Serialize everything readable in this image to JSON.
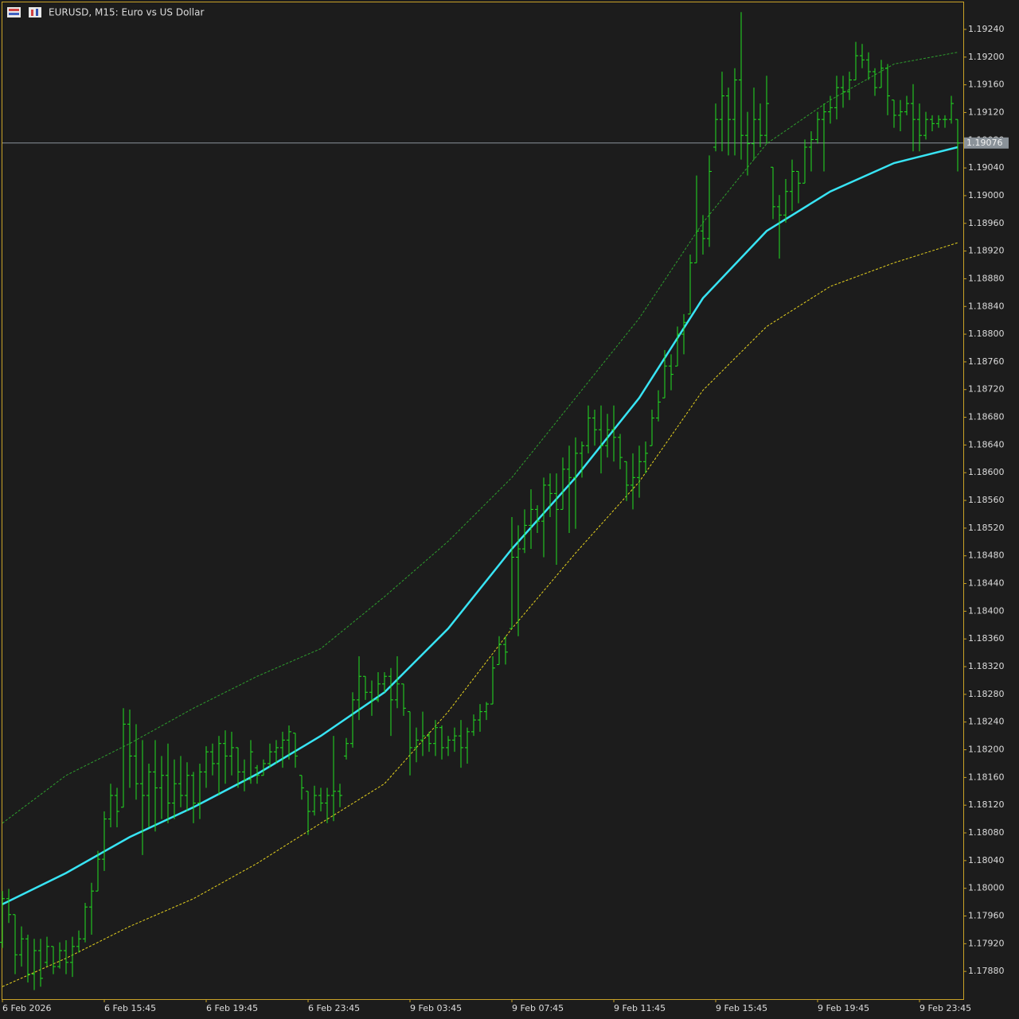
{
  "chart_data": {
    "type": "ohlc",
    "title": "EURUSD, M15:  Euro vs US Dollar",
    "categories": [
      "6 Feb 2026",
      null,
      null,
      null,
      null,
      null,
      null,
      null,
      null,
      null,
      null,
      null,
      null,
      null,
      null,
      null,
      "6 Feb 15:45",
      null,
      null,
      null,
      null,
      null,
      null,
      null,
      null,
      null,
      null,
      null,
      null,
      null,
      null,
      null,
      "6 Feb 19:45",
      null,
      null,
      null,
      null,
      null,
      null,
      null,
      null,
      null,
      null,
      null,
      null,
      null,
      null,
      null,
      "6 Feb 23:45",
      null,
      null,
      null,
      null,
      null,
      null,
      null,
      null,
      null,
      null,
      null,
      null,
      null,
      null,
      null,
      "9 Feb 03:45",
      null,
      null,
      null,
      null,
      null,
      null,
      null,
      null,
      null,
      null,
      null,
      null,
      null,
      null,
      null,
      "9 Feb 07:45",
      null,
      null,
      null,
      null,
      null,
      null,
      null,
      null,
      null,
      null,
      null,
      null,
      null,
      null,
      null,
      "9 Feb 11:45",
      null,
      null,
      null,
      null,
      null,
      null,
      null,
      null,
      null,
      null,
      null,
      null,
      null,
      null,
      null,
      "9 Feb 15:45",
      null,
      null,
      null,
      null,
      null,
      null,
      null,
      null,
      null,
      null,
      null,
      null,
      null,
      null,
      null,
      "9 Feb 19:45",
      null,
      null,
      null,
      null,
      null,
      null,
      null,
      null,
      null,
      null,
      null,
      null,
      null,
      null,
      null,
      "9 Feb 23:45",
      null,
      null,
      null,
      null,
      null,
      null
    ],
    "open": [
      1.17922,
      1.17985,
      1.17962,
      1.17904,
      1.17927,
      1.17876,
      1.1791,
      1.17893,
      1.17916,
      1.17887,
      1.1791,
      1.17893,
      1.17916,
      1.17927,
      1.17973,
      1.17996,
      1.18042,
      1.181,
      1.18134,
      1.18117,
      1.18237,
      1.18191,
      1.18151,
      1.18134,
      1.18168,
      1.18145,
      1.18163,
      1.18123,
      1.18151,
      1.18134,
      1.18163,
      1.18123,
      1.18168,
      1.18197,
      1.1818,
      1.18209,
      1.18191,
      1.18203,
      1.18168,
      1.18157,
      1.18174,
      1.18163,
      1.1818,
      1.18197,
      1.18203,
      1.18214,
      1.18224,
      1.18163,
      1.1814,
      1.18111,
      1.18134,
      1.18123,
      1.18134,
      1.1814,
      1.18191,
      1.18209,
      1.18272,
      1.18306,
      1.18283,
      1.18272,
      1.18295,
      1.18306,
      1.18272,
      1.18295,
      1.18255,
      1.18203,
      1.18214,
      1.1822,
      1.18209,
      1.18232,
      1.18203,
      1.18214,
      1.1822,
      1.18203,
      1.18226,
      1.18243,
      1.18255,
      1.18266,
      1.18323,
      1.18352,
      1.18375,
      1.18478,
      1.1849,
      1.18524,
      1.18547,
      1.1853,
      1.18582,
      1.1857,
      1.18547,
      1.18605,
      1.18593,
      1.18628,
      1.18639,
      1.18679,
      1.18662,
      1.18639,
      1.18662,
      1.18651,
      1.18616,
      1.18582,
      1.18593,
      1.18616,
      1.18639,
      1.18679,
      1.18708,
      1.18754,
      1.18754,
      1.188,
      1.18829,
      1.18903,
      1.18949,
      1.18938,
      1.1907,
      1.1911,
      1.19144,
      1.1911,
      1.19167,
      1.19087,
      1.19075,
      1.1911,
      1.19087,
      1.19041,
      1.18984,
      1.18972,
      1.19006,
      1.19035,
      1.19018,
      1.1907,
      1.19081,
      1.1911,
      1.19121,
      1.19127,
      1.19156,
      1.1915,
      1.19167,
      1.19202,
      1.19196,
      1.19179,
      1.19156,
      1.19184,
      1.19138,
      1.19116,
      1.19121,
      1.19133,
      1.1911,
      1.19087,
      1.1911,
      1.19104,
      1.1911,
      1.1911,
      1.1911
    ],
    "high": [
      1.17996,
      1.17999,
      1.17962,
      1.17945,
      1.17933,
      1.17927,
      1.17927,
      1.1793,
      1.17916,
      1.17922,
      1.17925,
      1.1793,
      1.17939,
      1.17979,
      1.18008,
      1.18054,
      1.18111,
      1.18151,
      1.18145,
      1.1826,
      1.18258,
      1.18237,
      1.18214,
      1.1818,
      1.18214,
      1.18191,
      1.18209,
      1.18186,
      1.18191,
      1.18182,
      1.18168,
      1.1818,
      1.18205,
      1.18209,
      1.1822,
      1.18228,
      1.18226,
      1.18203,
      1.18186,
      1.18214,
      1.18178,
      1.18186,
      1.18209,
      1.18214,
      1.18226,
      1.18235,
      1.18224,
      1.18163,
      1.1814,
      1.18148,
      1.18145,
      1.18145,
      1.1822,
      1.18151,
      1.18217,
      1.18283,
      1.18335,
      1.18306,
      1.183,
      1.18312,
      1.18312,
      1.18318,
      1.18335,
      1.18295,
      1.18255,
      1.18232,
      1.18255,
      1.18226,
      1.18243,
      1.18235,
      1.1822,
      1.18232,
      1.18243,
      1.18232,
      1.18251,
      1.18266,
      1.18269,
      1.18335,
      1.18364,
      1.18364,
      1.18536,
      1.18524,
      1.18547,
      1.18576,
      1.18553,
      1.18593,
      1.18599,
      1.18599,
      1.18622,
      1.18639,
      1.18651,
      1.18645,
      1.18697,
      1.18691,
      1.18697,
      1.18685,
      1.18697,
      1.18656,
      1.18616,
      1.18628,
      1.18639,
      1.18645,
      1.18691,
      1.18719,
      1.18777,
      1.18771,
      1.18811,
      1.18829,
      1.18915,
      1.19029,
      1.18972,
      1.19058,
      1.19133,
      1.19179,
      1.19156,
      1.19184,
      1.19265,
      1.19121,
      1.19156,
      1.19133,
      1.19173,
      1.19041,
      1.19001,
      1.19024,
      1.19052,
      1.19035,
      1.19081,
      1.19093,
      1.19121,
      1.19133,
      1.19144,
      1.19173,
      1.19173,
      1.19179,
      1.19222,
      1.19219,
      1.19207,
      1.19184,
      1.19196,
      1.1919,
      1.19138,
      1.19138,
      1.19144,
      1.19161,
      1.19133,
      1.19121,
      1.19116,
      1.19116,
      1.19116,
      1.19144,
      1.1911
    ],
    "low": [
      1.17914,
      1.1795,
      1.17876,
      1.17887,
      1.17864,
      1.17853,
      1.17858,
      1.17887,
      1.17876,
      1.17884,
      1.17876,
      1.17872,
      1.17907,
      1.17922,
      1.17933,
      1.17996,
      1.18025,
      1.18088,
      1.18088,
      1.18117,
      1.18145,
      1.18128,
      1.18048,
      1.18088,
      1.18082,
      1.181,
      1.18094,
      1.181,
      1.18117,
      1.18111,
      1.18094,
      1.181,
      1.18145,
      1.18163,
      1.18134,
      1.18151,
      1.18163,
      1.18145,
      1.1814,
      1.18151,
      1.18151,
      1.18163,
      1.18174,
      1.1818,
      1.18174,
      1.18186,
      1.18174,
      1.18128,
      1.18077,
      1.18105,
      1.18111,
      1.18094,
      1.18097,
      1.18117,
      1.18186,
      1.18203,
      1.18243,
      1.18272,
      1.18249,
      1.18269,
      1.18283,
      1.1822,
      1.1826,
      1.18249,
      1.18163,
      1.18182,
      1.18191,
      1.18197,
      1.18191,
      1.18186,
      1.18191,
      1.18197,
      1.18174,
      1.1818,
      1.1822,
      1.18226,
      1.18243,
      1.18266,
      1.18323,
      1.18323,
      1.18375,
      1.18364,
      1.18484,
      1.1849,
      1.18513,
      1.18478,
      1.18536,
      1.18467,
      1.18547,
      1.18513,
      1.18519,
      1.18593,
      1.18628,
      1.18639,
      1.18599,
      1.18622,
      1.18616,
      1.18605,
      1.18559,
      1.18547,
      1.18564,
      1.18599,
      1.18639,
      1.18674,
      1.18708,
      1.18719,
      1.18754,
      1.18771,
      1.18829,
      1.18903,
      1.18915,
      1.18926,
      1.19064,
      1.19064,
      1.19058,
      1.19058,
      1.19052,
      1.19029,
      1.19052,
      1.1907,
      1.19075,
      1.18966,
      1.18909,
      1.18961,
      1.18978,
      1.18989,
      1.19018,
      1.19035,
      1.19075,
      1.19035,
      1.19104,
      1.1911,
      1.19127,
      1.19138,
      1.19167,
      1.19184,
      1.19167,
      1.19144,
      1.19156,
      1.19116,
      1.19098,
      1.19093,
      1.19116,
      1.19064,
      1.19064,
      1.19081,
      1.19093,
      1.19098,
      1.19098,
      1.19104,
      1.19035
    ],
    "close": [
      1.17985,
      1.17962,
      1.17904,
      1.17927,
      1.17876,
      1.1791,
      1.1787,
      1.17916,
      1.17887,
      1.1791,
      1.17893,
      1.17916,
      1.17927,
      1.17973,
      1.17996,
      1.18042,
      1.181,
      1.18134,
      1.18111,
      1.18237,
      1.18191,
      1.18151,
      1.18134,
      1.18168,
      1.18145,
      1.18163,
      1.18123,
      1.18151,
      1.18134,
      1.18163,
      1.18123,
      1.18168,
      1.18197,
      1.1818,
      1.18209,
      1.18191,
      1.18203,
      1.18168,
      1.18157,
      1.18197,
      1.18163,
      1.1818,
      1.18197,
      1.18203,
      1.18214,
      1.18226,
      1.18191,
      1.18145,
      1.18111,
      1.18134,
      1.18123,
      1.18134,
      1.1814,
      1.18134,
      1.18209,
      1.18272,
      1.18306,
      1.18283,
      1.18272,
      1.18295,
      1.18306,
      1.18272,
      1.18295,
      1.1826,
      1.18203,
      1.18214,
      1.1822,
      1.18209,
      1.18232,
      1.18203,
      1.18214,
      1.1822,
      1.18203,
      1.18226,
      1.18243,
      1.18255,
      1.18266,
      1.18318,
      1.18352,
      1.18341,
      1.18478,
      1.1849,
      1.18524,
      1.18547,
      1.1853,
      1.18582,
      1.1857,
      1.18547,
      1.18605,
      1.18593,
      1.18628,
      1.18639,
      1.18679,
      1.18662,
      1.18639,
      1.18662,
      1.18651,
      1.18622,
      1.18582,
      1.18593,
      1.18616,
      1.18628,
      1.18679,
      1.18702,
      1.18754,
      1.18742,
      1.188,
      1.18817,
      1.18903,
      1.18949,
      1.18938,
      1.19035,
      1.1911,
      1.19144,
      1.1911,
      1.19167,
      1.19087,
      1.19075,
      1.1911,
      1.19087,
      1.19133,
      1.18984,
      1.18972,
      1.19006,
      1.19035,
      1.19018,
      1.1907,
      1.19081,
      1.1911,
      1.19121,
      1.19127,
      1.19156,
      1.1915,
      1.19167,
      1.19202,
      1.19196,
      1.19179,
      1.19156,
      1.19184,
      1.19144,
      1.19116,
      1.19121,
      1.19133,
      1.1911,
      1.19087,
      1.1911,
      1.19104,
      1.1911,
      1.1911,
      1.19133,
      1.19076
    ],
    "color": "#22e022",
    "lines": [
      {
        "x": [
          0,
          10,
          20,
          30,
          40,
          50,
          60,
          70,
          80,
          90,
          100,
          110,
          120,
          130,
          140,
          150
        ],
        "values": [
          1.18094,
          1.18163,
          1.18209,
          1.1826,
          1.18306,
          1.18346,
          1.18421,
          1.18501,
          1.18593,
          1.18708,
          1.18823,
          1.18961,
          1.19075,
          1.19138,
          1.1919,
          1.19207
        ],
        "color": "#2e9e2e",
        "style": "dashed"
      },
      {
        "x": [
          0,
          10,
          20,
          30,
          40,
          50,
          60,
          70,
          80,
          90,
          100,
          110,
          120,
          130,
          140,
          150
        ],
        "values": [
          1.17858,
          1.17899,
          1.17945,
          1.17985,
          1.18036,
          1.18094,
          1.18151,
          1.18255,
          1.18375,
          1.18484,
          1.18587,
          1.18719,
          1.18811,
          1.18869,
          1.18903,
          1.18932
        ],
        "color": "#e6d21e",
        "style": "dashed"
      },
      {
        "x": [
          0,
          10,
          20,
          30,
          40,
          50,
          60,
          70,
          80,
          90,
          100,
          110,
          120,
          130,
          140,
          150
        ],
        "values": [
          1.17977,
          1.18022,
          1.18074,
          1.18117,
          1.18165,
          1.1822,
          1.18283,
          1.18375,
          1.1849,
          1.18593,
          1.18708,
          1.18852,
          1.18949,
          1.19006,
          1.19047,
          1.1907
        ],
        "color": "#38e4f4",
        "style": "solid"
      }
    ],
    "current_price": 1.19076,
    "current_price_color": "#8a9299",
    "ylim": [
      1.1784,
      1.19279
    ],
    "yticks": [
      {
        "value": 1.1788,
        "label": "1.17880"
      },
      {
        "value": 1.1792,
        "label": "1.17920"
      },
      {
        "value": 1.1796,
        "label": "1.17960"
      },
      {
        "value": 1.18,
        "label": "1.18000"
      },
      {
        "value": 1.1804,
        "label": "1.18040"
      },
      {
        "value": 1.1808,
        "label": "1.18080"
      },
      {
        "value": 1.1812,
        "label": "1.18120"
      },
      {
        "value": 1.1816,
        "label": "1.18160"
      },
      {
        "value": 1.182,
        "label": "1.18200"
      },
      {
        "value": 1.1824,
        "label": "1.18240"
      },
      {
        "value": 1.1828,
        "label": "1.18280"
      },
      {
        "value": 1.1832,
        "label": "1.18320"
      },
      {
        "value": 1.1836,
        "label": "1.18360"
      },
      {
        "value": 1.184,
        "label": "1.18400"
      },
      {
        "value": 1.1844,
        "label": "1.18440"
      },
      {
        "value": 1.1848,
        "label": "1.18480"
      },
      {
        "value": 1.1852,
        "label": "1.18520"
      },
      {
        "value": 1.1856,
        "label": "1.18560"
      },
      {
        "value": 1.186,
        "label": "1.18600"
      },
      {
        "value": 1.1864,
        "label": "1.18640"
      },
      {
        "value": 1.1868,
        "label": "1.18680"
      },
      {
        "value": 1.1872,
        "label": "1.18720"
      },
      {
        "value": 1.1876,
        "label": "1.18760"
      },
      {
        "value": 1.188,
        "label": "1.18800"
      },
      {
        "value": 1.1884,
        "label": "1.18840"
      },
      {
        "value": 1.1888,
        "label": "1.18880"
      },
      {
        "value": 1.1892,
        "label": "1.18920"
      },
      {
        "value": 1.1896,
        "label": "1.18960"
      },
      {
        "value": 1.19,
        "label": "1.19000"
      },
      {
        "value": 1.1904,
        "label": "1.19040"
      },
      {
        "value": 1.1908,
        "label": "1.19080"
      },
      {
        "value": 1.1912,
        "label": "1.19120"
      },
      {
        "value": 1.1916,
        "label": "1.19160"
      },
      {
        "value": 1.192,
        "label": "1.19200"
      },
      {
        "value": 1.1924,
        "label": "1.19240"
      }
    ]
  }
}
